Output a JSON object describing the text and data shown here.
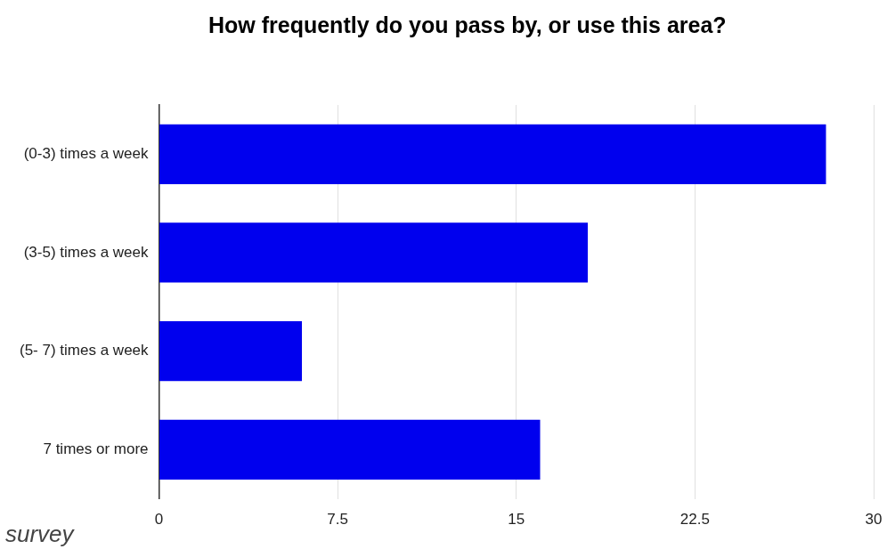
{
  "chart_data": {
    "type": "bar",
    "orientation": "horizontal",
    "title": "How frequently do you pass by, or use this area?",
    "categories": [
      "(0-3) times a week",
      "(3-5) times a week",
      "(5- 7) times a week",
      "7 times or more"
    ],
    "values": [
      28,
      18,
      6,
      16
    ],
    "color": "#0000ee",
    "xlim": [
      0,
      30
    ],
    "xticks": [
      0,
      7.5,
      15,
      22.5,
      30
    ],
    "grid": "x",
    "annotations": [
      "survey"
    ]
  }
}
